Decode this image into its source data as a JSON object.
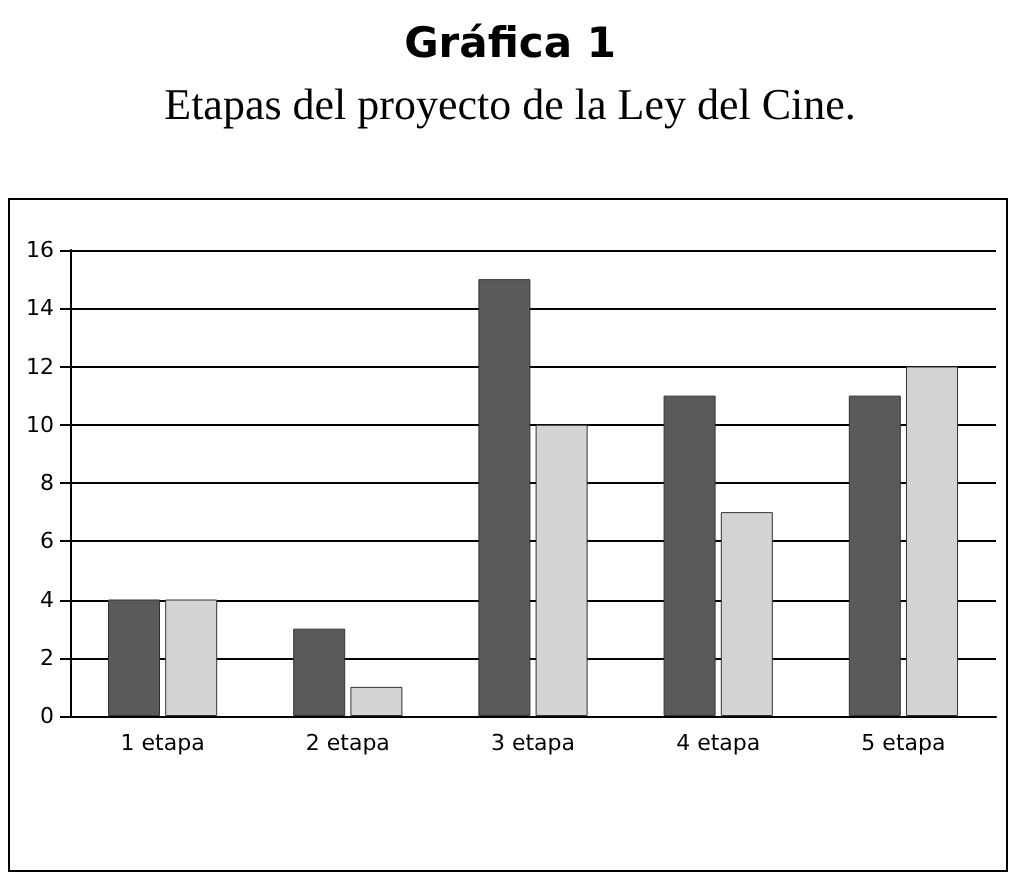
{
  "chart_data": {
    "type": "bar",
    "title": "Gráfica 1",
    "subtitle": "Etapas del proyecto de la Ley del Cine.",
    "categories": [
      "1 etapa",
      "2 etapa",
      "3 etapa",
      "4 etapa",
      "5 etapa"
    ],
    "series": [
      {
        "color": "#5a5a5a",
        "values": [
          4,
          3,
          15,
          11,
          11
        ]
      },
      {
        "color": "#d4d4d4",
        "values": [
          4,
          1,
          10,
          7,
          12
        ]
      }
    ],
    "ylim": [
      0,
      16
    ],
    "yticks": [
      0,
      2,
      4,
      6,
      8,
      10,
      12,
      14,
      16
    ],
    "grid": "y"
  }
}
